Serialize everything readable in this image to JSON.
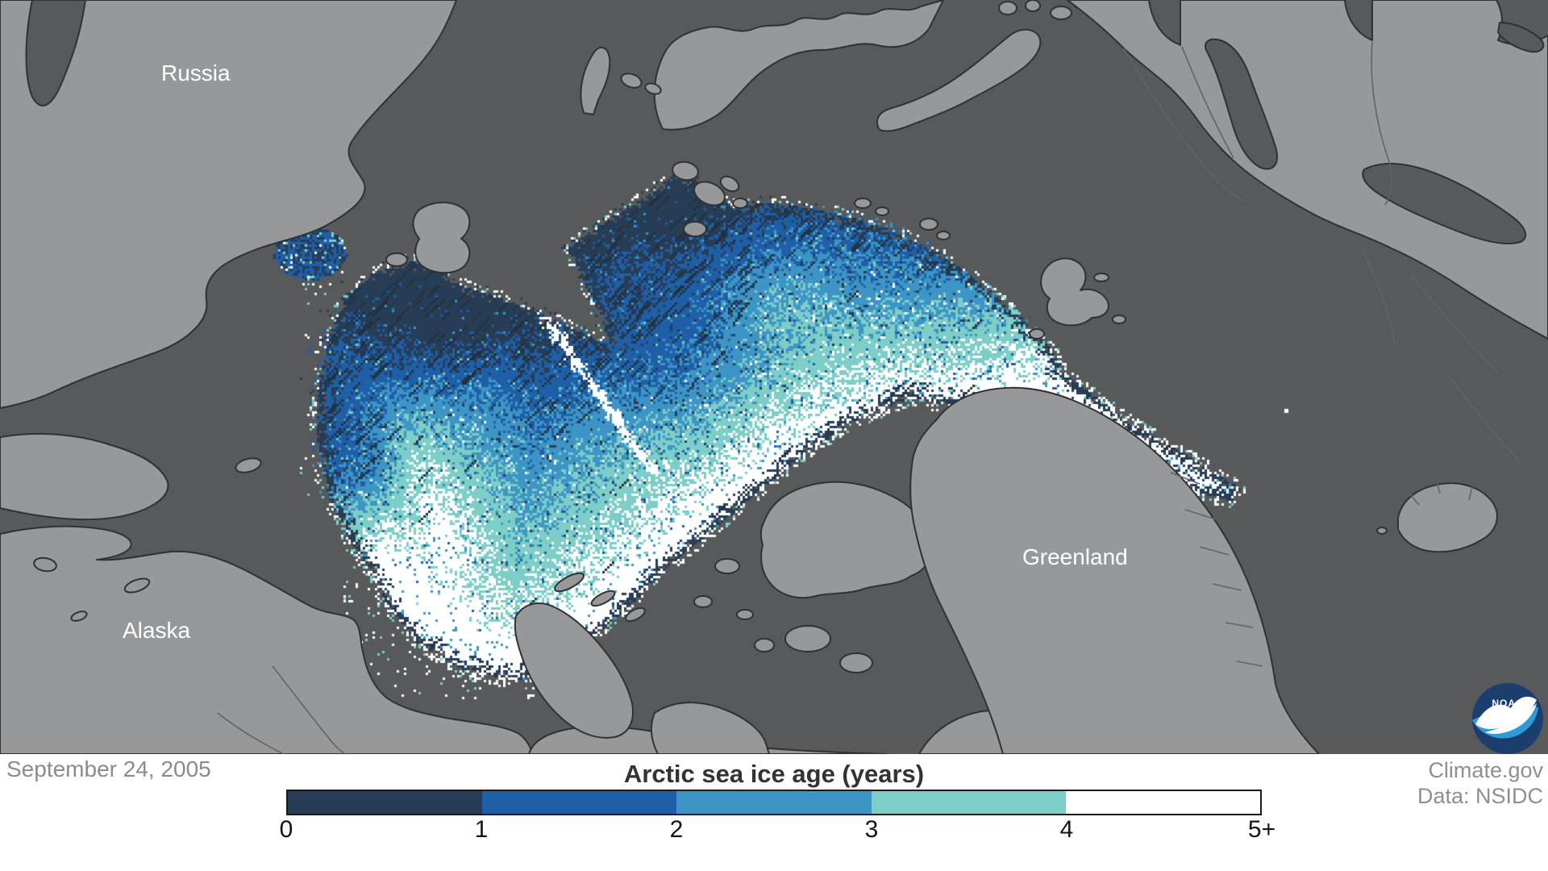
{
  "map": {
    "labels": [
      {
        "text": "Russia"
      },
      {
        "text": "Alaska"
      },
      {
        "text": "Greenland"
      }
    ],
    "colors": {
      "ocean": "#58595B",
      "land": "#96989A",
      "coastline": "#2F3133",
      "inner_border": "#626365"
    }
  },
  "ice": {
    "palette": {
      "age_0_1": "#273D55",
      "age_1_2": "#1F5FA8",
      "age_2_3": "#3D95C6",
      "age_3_4": "#7CCEC6",
      "age_4_5_plus": "#FFFFFF"
    },
    "hatch_color": "#223140"
  },
  "legend": {
    "title": "Arctic sea ice age (years)",
    "tick_labels": [
      "0",
      "1",
      "2",
      "3",
      "4",
      "5+"
    ]
  },
  "footer": {
    "date": "September 24, 2005",
    "credit_source": "Climate.gov",
    "credit_data": "Data: NSIDC"
  },
  "logo": {
    "text": "NOAA",
    "top_color": "#1C3E6F",
    "bottom_color": "#2E9BD8"
  }
}
